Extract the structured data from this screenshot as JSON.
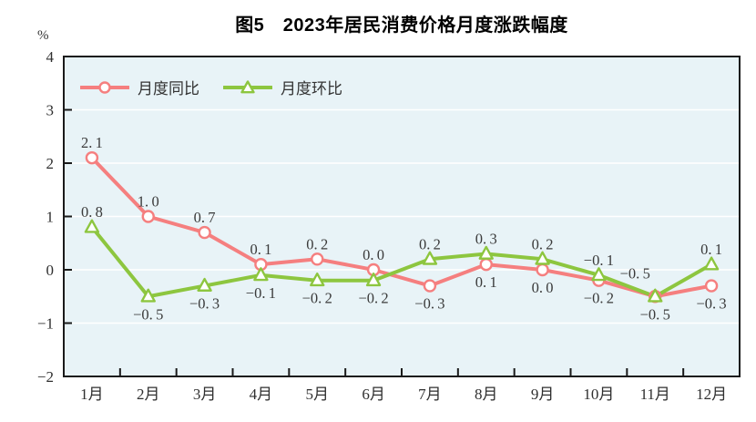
{
  "title": "图5　2023年居民消费价格月度涨跌幅度",
  "unit_label": "%",
  "chart_data": {
    "type": "line",
    "categories": [
      "1月",
      "2月",
      "3月",
      "4月",
      "5月",
      "6月",
      "7月",
      "8月",
      "9月",
      "10月",
      "11月",
      "12月"
    ],
    "series": [
      {
        "name": "月度同比",
        "marker": "circle",
        "color": "#f57f7f",
        "values": [
          2.1,
          1.0,
          0.7,
          0.1,
          0.2,
          0.0,
          -0.3,
          0.1,
          0.0,
          -0.2,
          -0.5,
          -0.3
        ],
        "label_side": [
          "above",
          "above",
          "above",
          "above",
          "above",
          "above",
          "below",
          "below",
          "below",
          "below",
          "below",
          "below"
        ],
        "label_dx": [
          0,
          0,
          0,
          0,
          0,
          0,
          0,
          0,
          0,
          0,
          0,
          0
        ],
        "label_dy": [
          0,
          0,
          0,
          0,
          0,
          0,
          0,
          0,
          0,
          0,
          0,
          0
        ]
      },
      {
        "name": "月度环比",
        "marker": "triangle",
        "color": "#8dc63f",
        "values": [
          0.8,
          -0.5,
          -0.3,
          -0.1,
          -0.2,
          -0.2,
          0.2,
          0.3,
          0.2,
          -0.1,
          -0.5,
          0.1
        ],
        "label_side": [
          "above",
          "below",
          "below",
          "below",
          "below",
          "below",
          "above",
          "above",
          "above",
          "above",
          "above",
          "above"
        ],
        "label_dx": [
          0,
          0,
          0,
          0,
          0,
          0,
          0,
          0,
          0,
          0,
          -22,
          0
        ],
        "label_dy": [
          0,
          0,
          0,
          0,
          0,
          0,
          0,
          0,
          0,
          0,
          -9,
          0
        ]
      }
    ],
    "ylim": [
      -2,
      4
    ],
    "ytick_step": 1,
    "grid": true,
    "legend_position": "top-left-inside",
    "colors": {
      "plot_background": "#e8f3f7",
      "gridline": "#ffffff",
      "axis": "#1a1a1a",
      "tick_label": "#2f2f2f",
      "data_label": "#3a3a3a",
      "marker_fill": "#ffffff"
    }
  }
}
